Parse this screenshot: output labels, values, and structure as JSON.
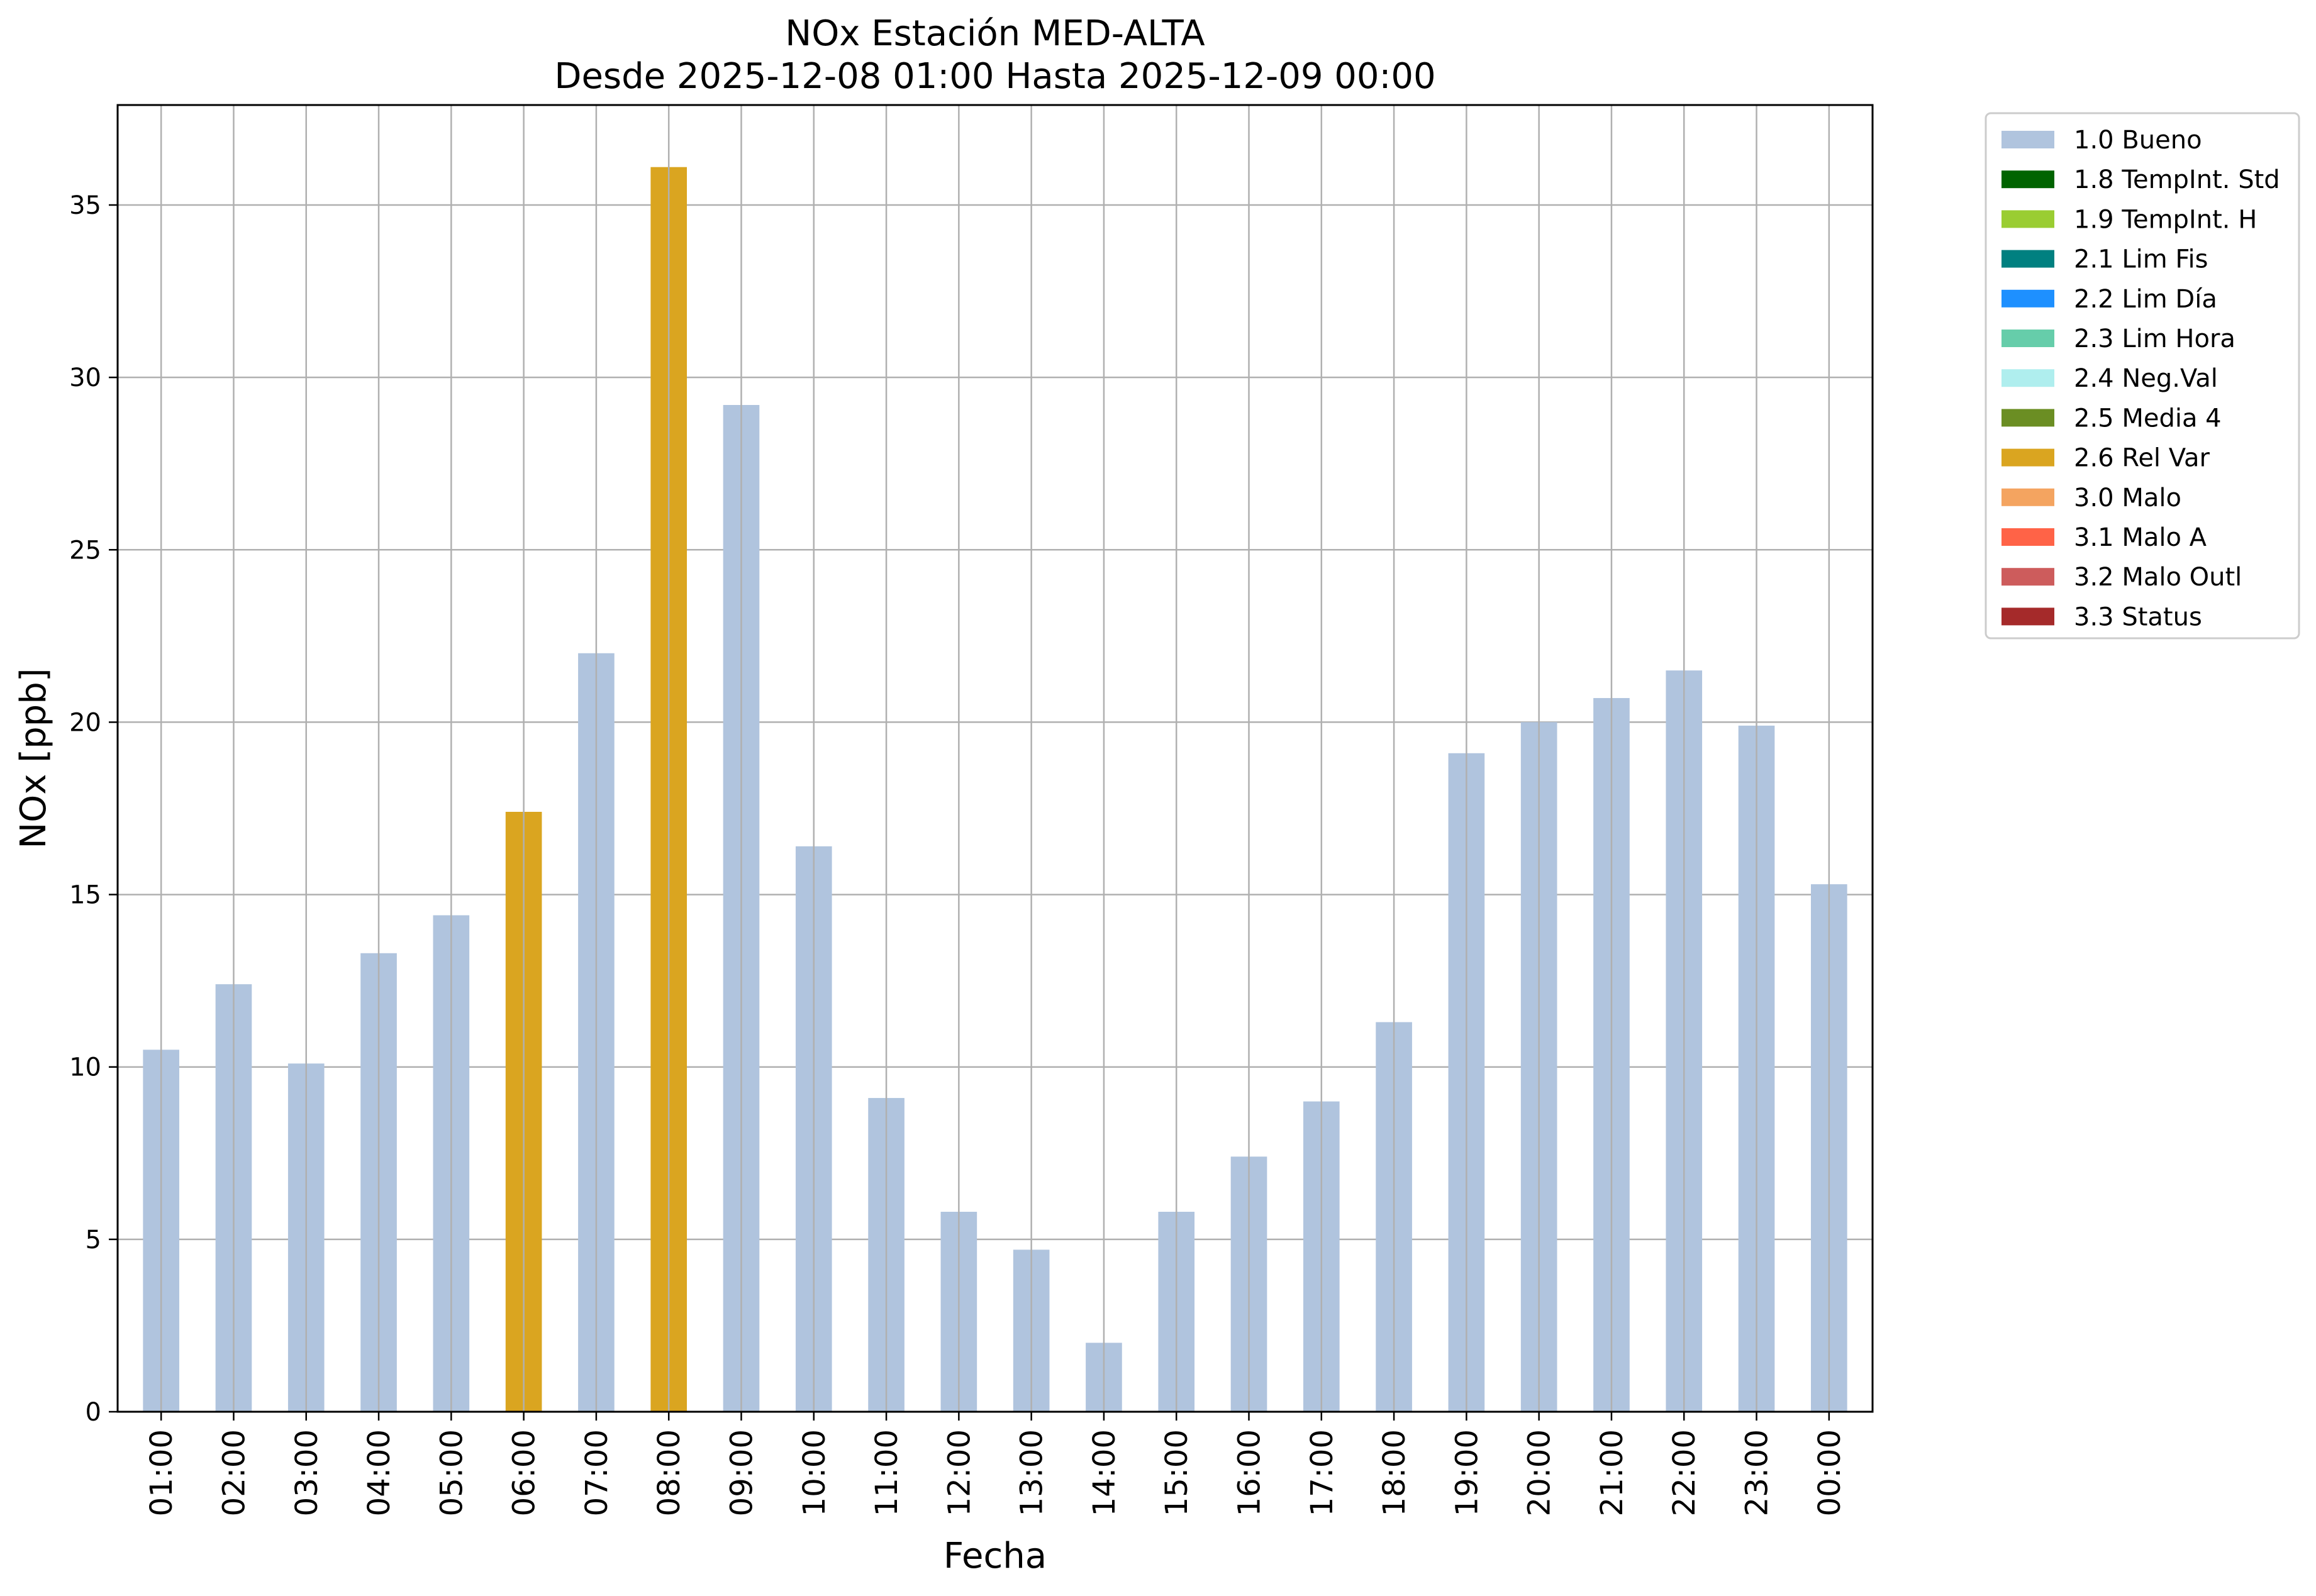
{
  "chart_data": {
    "type": "bar",
    "title": "NOx Estación MED-ALTA",
    "subtitle": "Desde 2025-12-08 01:00 Hasta 2025-12-09 00:00",
    "xlabel": "Fecha",
    "ylabel": "NOx [ppb]",
    "ylim": [
      0,
      37.9
    ],
    "yticks": [
      0,
      5,
      10,
      15,
      20,
      25,
      30,
      35
    ],
    "grid": true,
    "legend_placement": "outside-top-right",
    "categories": [
      "01:00",
      "02:00",
      "03:00",
      "04:00",
      "05:00",
      "06:00",
      "07:00",
      "08:00",
      "09:00",
      "10:00",
      "11:00",
      "12:00",
      "13:00",
      "14:00",
      "15:00",
      "16:00",
      "17:00",
      "18:00",
      "19:00",
      "20:00",
      "21:00",
      "22:00",
      "23:00",
      "00:00"
    ],
    "values": [
      10.5,
      12.4,
      10.1,
      13.3,
      14.4,
      17.4,
      22.0,
      36.1,
      29.2,
      16.4,
      9.1,
      5.8,
      4.7,
      2.0,
      5.8,
      7.4,
      9.0,
      11.3,
      19.1,
      20.0,
      20.7,
      21.5,
      19.9,
      15.3
    ],
    "bar_flags": [
      "1.0 Bueno",
      "1.0 Bueno",
      "1.0 Bueno",
      "1.0 Bueno",
      "1.0 Bueno",
      "2.6 Rel Var",
      "1.0 Bueno",
      "2.6 Rel Var",
      "1.0 Bueno",
      "1.0 Bueno",
      "1.0 Bueno",
      "1.0 Bueno",
      "1.0 Bueno",
      "1.0 Bueno",
      "1.0 Bueno",
      "1.0 Bueno",
      "1.0 Bueno",
      "1.0 Bueno",
      "1.0 Bueno",
      "1.0 Bueno",
      "1.0 Bueno",
      "1.0 Bueno",
      "1.0 Bueno",
      "1.0 Bueno"
    ],
    "legend": [
      {
        "label": "1.0 Bueno",
        "color": "#b0c4de"
      },
      {
        "label": "1.8 TempInt. Std",
        "color": "#006400"
      },
      {
        "label": "1.9 TempInt. H",
        "color": "#9acd32"
      },
      {
        "label": "2.1 Lim Fis",
        "color": "#008080"
      },
      {
        "label": "2.2 Lim Día",
        "color": "#1e90ff"
      },
      {
        "label": "2.3 Lim Hora",
        "color": "#66cdaa"
      },
      {
        "label": "2.4 Neg.Val",
        "color": "#afeeee"
      },
      {
        "label": "2.5 Media 4",
        "color": "#6b8e23"
      },
      {
        "label": "2.6 Rel Var",
        "color": "#daa520"
      },
      {
        "label": "3.0 Malo",
        "color": "#f4a460"
      },
      {
        "label": "3.1 Malo A",
        "color": "#ff6347"
      },
      {
        "label": "3.2 Malo Outl",
        "color": "#cd5c5c"
      },
      {
        "label": "3.3 Status",
        "color": "#a52a2a"
      }
    ]
  }
}
